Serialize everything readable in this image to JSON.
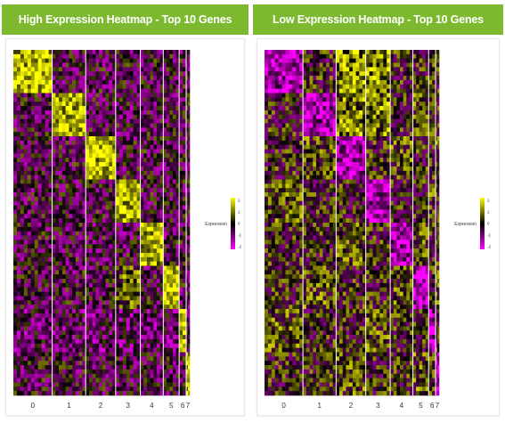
{
  "panels": [
    {
      "title": "High Expression Heatmap - Top 10 Genes",
      "legend_title": "Expression",
      "legend_ticks": [
        "2",
        "1",
        "0",
        "-1",
        "-2"
      ],
      "cluster_labels": [
        "0",
        "1",
        "2",
        "3",
        "4",
        "5",
        "6",
        "7"
      ]
    },
    {
      "title": "Low Expression Heatmap - Top 10 Genes",
      "legend_title": "Expression",
      "legend_ticks": [
        "2",
        "1",
        "0",
        "-1",
        "-2"
      ],
      "cluster_labels": [
        "0",
        "1",
        "2",
        "3",
        "4",
        "5",
        "6",
        "7"
      ]
    }
  ],
  "colors": {
    "header_bg": "#7cb92f",
    "low": "#ff00ff",
    "mid": "#000000",
    "high": "#ffff00"
  },
  "chart_data": [
    {
      "type": "heatmap",
      "title": "High Expression Heatmap - Top 10 Genes",
      "x_categories": [
        "0",
        "1",
        "2",
        "3",
        "4",
        "5",
        "6",
        "7"
      ],
      "legend_title": "Expression",
      "legend_range": [
        -2,
        2
      ],
      "blocks_high_cluster": [
        0,
        1,
        2,
        3,
        4,
        5,
        6,
        7
      ]
    },
    {
      "type": "heatmap",
      "title": "Low Expression Heatmap - Top 10 Genes",
      "x_categories": [
        "0",
        "1",
        "2",
        "3",
        "4",
        "5",
        "6",
        "7"
      ],
      "legend_title": "Expression",
      "legend_range": [
        -2,
        2
      ],
      "blocks_high_cluster": [
        0,
        1,
        2,
        3,
        4,
        5,
        6,
        7
      ]
    }
  ]
}
